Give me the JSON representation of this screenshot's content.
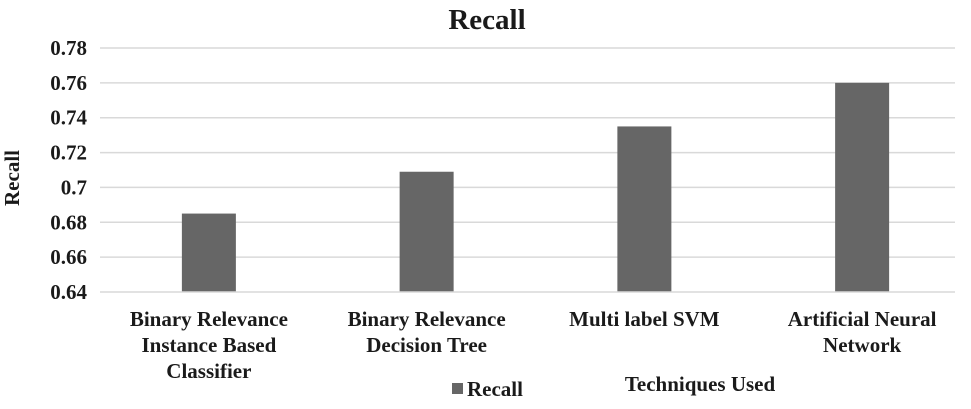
{
  "chart_data": {
    "type": "bar",
    "title": "Recall",
    "xlabel": "Techniques Used",
    "ylabel": "Recall",
    "categories": [
      [
        "Binary Relevance",
        "Instance Based",
        "Classifier"
      ],
      [
        "Binary Relevance",
        "Decision Tree"
      ],
      [
        "Multi label SVM"
      ],
      [
        "Artificial Neural",
        "Network"
      ]
    ],
    "series": [
      {
        "name": "Recall",
        "values": [
          0.685,
          0.709,
          0.735,
          0.76
        ]
      }
    ],
    "yticks": [
      "0.64",
      "0.66",
      "0.68",
      "0.7",
      "0.72",
      "0.74",
      "0.76",
      "0.78"
    ],
    "ylim": [
      0.64,
      0.78
    ],
    "grid": true,
    "legend_position": "bottom",
    "bar_color": "#666666",
    "grid_color": "#d9d9d9"
  }
}
